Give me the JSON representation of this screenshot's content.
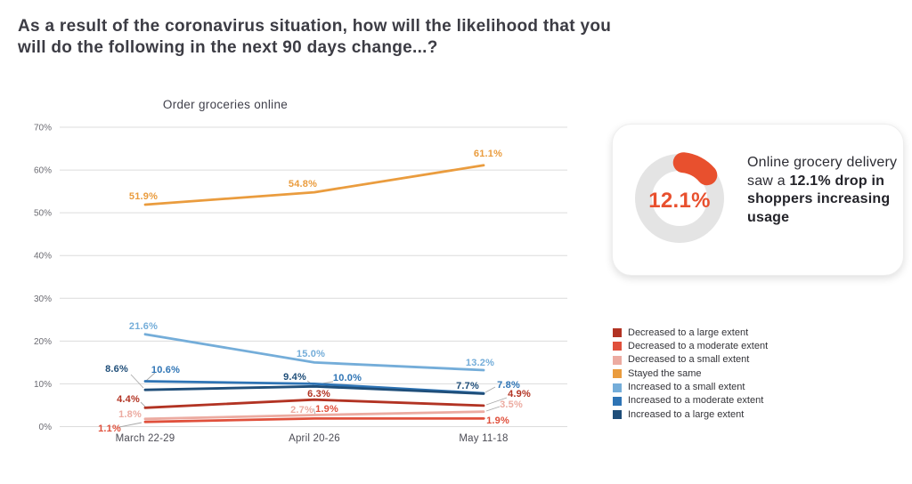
{
  "header": {
    "title_line1": "As a result of the coronavirus situation, how will the likelihood that you",
    "title_line2": "will do the following in the next 90 days change...?"
  },
  "chart_data": {
    "type": "line",
    "title": "Order groceries online",
    "categories": [
      "March 22-29",
      "April 20-26",
      "May 11-18"
    ],
    "series": [
      {
        "name": "Decreased to a large extent",
        "color": "#b23323",
        "values": [
          4.4,
          6.3,
          4.9
        ]
      },
      {
        "name": "Decreased to a moderate extent",
        "color": "#e0503c",
        "values": [
          1.1,
          1.9,
          1.9
        ]
      },
      {
        "name": "Decreased to a small extent",
        "color": "#ecaba1",
        "values": [
          1.8,
          2.7,
          3.5
        ]
      },
      {
        "name": "Stayed the same",
        "color": "#ea9c3e",
        "values": [
          51.9,
          54.8,
          61.1
        ]
      },
      {
        "name": "Increased to a small extent",
        "color": "#74add9",
        "values": [
          21.6,
          15.0,
          13.2
        ]
      },
      {
        "name": "Increased to a moderate extent",
        "color": "#2e74b5",
        "values": [
          10.6,
          10.0,
          7.8
        ]
      },
      {
        "name": "Increased to a large extent",
        "color": "#1f4e79",
        "values": [
          8.6,
          9.4,
          7.7
        ]
      }
    ],
    "ylim": [
      0,
      70
    ],
    "ytick_step": 10,
    "ytick_suffix": "%",
    "grid": true,
    "legend_position": "right-bottom",
    "value_label_format": "one-decimal-percent"
  },
  "insight_card": {
    "donut_value": "12.1%",
    "donut_pct": 12.1,
    "accent_color": "#e8502e",
    "ring_color": "#e4e4e4",
    "text_regular": "Online grocery delivery saw a ",
    "text_bold": "12.1% drop in shoppers increasing usage"
  }
}
